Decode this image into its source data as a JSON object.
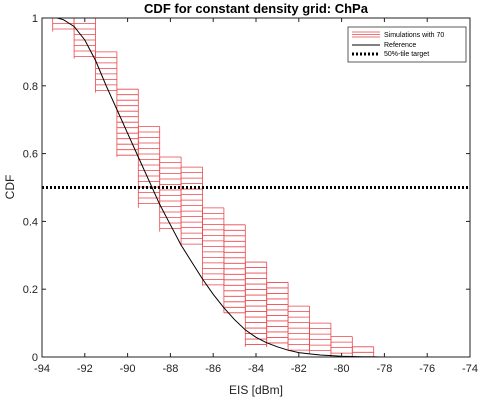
{
  "chart_data": {
    "type": "line",
    "title": "CDF for constant density grid: ChPa",
    "xlabel": "EIS [dBm]",
    "ylabel": "CDF",
    "xlim": [
      -94,
      -74
    ],
    "ylim": [
      0,
      1
    ],
    "xticks": [
      "-94",
      "-92",
      "-90",
      "-88",
      "-86",
      "-84",
      "-82",
      "-80",
      "-78",
      "-76",
      "-74"
    ],
    "yticks": [
      "0",
      "0.2",
      "0.4",
      "0.6",
      "0.8",
      "1"
    ],
    "grid": false,
    "legend_position": "top-right",
    "series": [
      {
        "name": "Simulations with 70",
        "style": "band",
        "color": "#e8474c",
        "bins": [
          {
            "x": -93.0,
            "ymin": 0.96,
            "ymax": 1.0
          },
          {
            "x": -92.0,
            "ymin": 0.88,
            "ymax": 1.0
          },
          {
            "x": -91.0,
            "ymin": 0.78,
            "ymax": 0.9
          },
          {
            "x": -90.0,
            "ymin": 0.59,
            "ymax": 0.79
          },
          {
            "x": -89.0,
            "ymin": 0.44,
            "ymax": 0.68
          },
          {
            "x": -88.0,
            "ymin": 0.37,
            "ymax": 0.59
          },
          {
            "x": -87.0,
            "ymin": 0.33,
            "ymax": 0.56
          },
          {
            "x": -86.0,
            "ymin": 0.21,
            "ymax": 0.44
          },
          {
            "x": -85.0,
            "ymin": 0.13,
            "ymax": 0.39
          },
          {
            "x": -84.0,
            "ymin": 0.03,
            "ymax": 0.28
          },
          {
            "x": -83.0,
            "ymin": 0.03,
            "ymax": 0.22
          },
          {
            "x": -82.0,
            "ymin": 0.02,
            "ymax": 0.15
          },
          {
            "x": -81.0,
            "ymin": 0.01,
            "ymax": 0.1
          },
          {
            "x": -80.0,
            "ymin": 0.0,
            "ymax": 0.06
          },
          {
            "x": -79.0,
            "ymin": 0.0,
            "ymax": 0.03
          }
        ]
      },
      {
        "name": "Reference",
        "style": "line",
        "color": "#000000",
        "x": [
          -93.3,
          -93.0,
          -92.5,
          -92.0,
          -91.5,
          -91.0,
          -90.5,
          -90.0,
          -89.5,
          -89.0,
          -88.5,
          -88.0,
          -87.5,
          -87.0,
          -86.5,
          -86.0,
          -85.5,
          -85.0,
          -84.5,
          -84.0,
          -83.5,
          -83.0,
          -82.5,
          -82.0,
          -81.5,
          -81.0,
          -80.5,
          -80.0,
          -79.5,
          -79.0,
          -78.5,
          -78.0
        ],
        "y": [
          1.0,
          0.995,
          0.975,
          0.935,
          0.875,
          0.8,
          0.73,
          0.66,
          0.59,
          0.52,
          0.45,
          0.39,
          0.33,
          0.28,
          0.23,
          0.185,
          0.145,
          0.11,
          0.08,
          0.058,
          0.042,
          0.03,
          0.02,
          0.013,
          0.009,
          0.006,
          0.004,
          0.0025,
          0.0015,
          0.001,
          0.0005,
          0.0
        ]
      },
      {
        "name": "50%-tile target",
        "style": "dotted",
        "color": "#000000",
        "y": 0.5
      }
    ]
  }
}
